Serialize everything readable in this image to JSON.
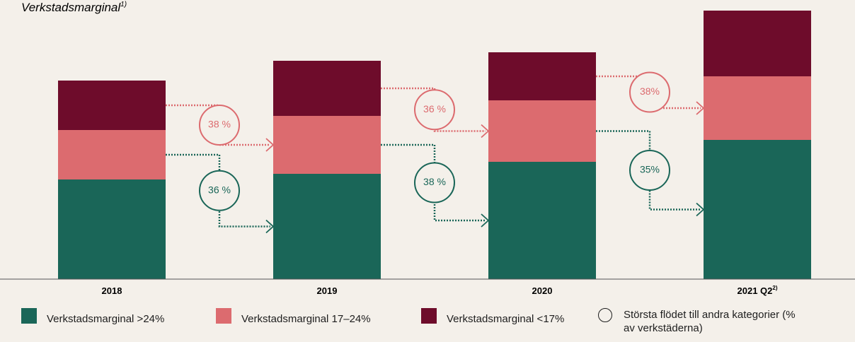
{
  "chart_data": {
    "type": "stacked_bar",
    "title": "Verkstadsmarginal",
    "title_note": "1)",
    "categories": [
      "2018",
      "2019",
      "2020",
      "2021 Q2"
    ],
    "category_notes": [
      null,
      null,
      null,
      "2)"
    ],
    "series": [
      {
        "name": "Verkstadsmarginal >24%",
        "color": "#1a6658",
        "values": [
          141,
          149,
          166,
          197
        ]
      },
      {
        "name": "Verkstadsmarginal 17–24%",
        "color": "#dc6b6f",
        "values": [
          70,
          82,
          87,
          90
        ]
      },
      {
        "name": "Verkstadsmarginal <17%",
        "color": "#6e0c2b",
        "values": [
          70,
          78,
          68,
          93
        ]
      }
    ],
    "ylim": [
      0,
      380
    ],
    "flows": [
      [
        {
          "label": "38 %",
          "color": "#dc6b6f"
        },
        {
          "label": "36 %",
          "color": "#1a6658"
        }
      ],
      [
        {
          "label": "36 %",
          "color": "#dc6b6f"
        },
        {
          "label": "38 %",
          "color": "#1a6658"
        }
      ],
      [
        {
          "label": "38%",
          "color": "#dc6b6f"
        },
        {
          "label": "35%",
          "color": "#1a6658"
        }
      ]
    ],
    "flow_legend": "Största flödet till andra kategorier (% av verkstäderna)"
  }
}
